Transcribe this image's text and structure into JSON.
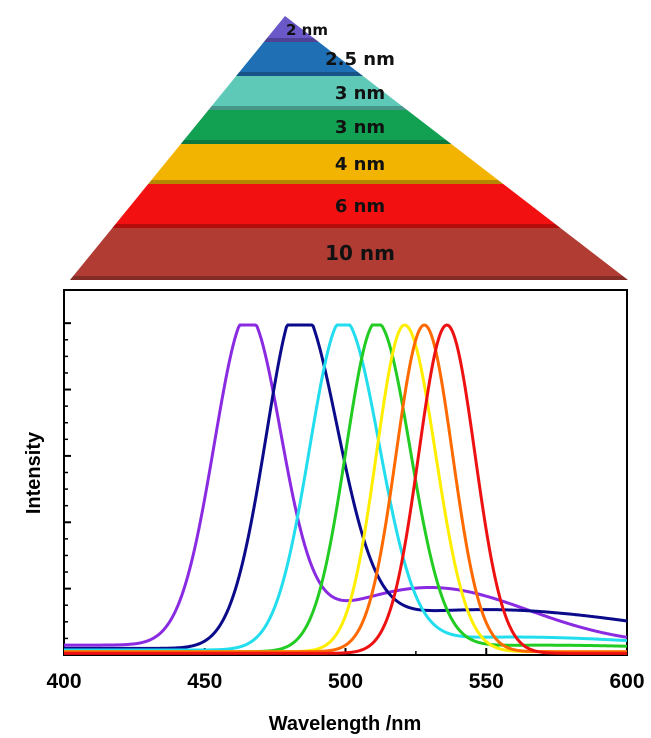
{
  "pyramid": {
    "layers": [
      {
        "label": "2 nm",
        "color": "#6a58c8"
      },
      {
        "label": "2.5 nm",
        "color": "#1f6fb5"
      },
      {
        "label": "3 nm",
        "color": "#5fc9b8"
      },
      {
        "label": "3 nm",
        "color": "#12a052"
      },
      {
        "label": "4 nm",
        "color": "#f2b400"
      },
      {
        "label": "6 nm",
        "color": "#f21010"
      },
      {
        "label": "10 nm",
        "color": "#b03c33"
      }
    ]
  },
  "chart_data": {
    "type": "line",
    "xlabel": "Wavelength /nm",
    "ylabel": "Intensity",
    "xlim": [
      400,
      600
    ],
    "ylim": [
      0,
      1.0
    ],
    "xticks": [
      "400",
      "450",
      "500",
      "550",
      "600"
    ],
    "series": [
      {
        "color": "#8a2be2",
        "peak": 465,
        "wl": 12,
        "wr": 12,
        "base": 0.03,
        "tail": 0.18,
        "tail_center": 530,
        "tail_width": 35
      },
      {
        "color": "#0a0a8a",
        "peak": 483,
        "wl": 12,
        "wr": 14,
        "base": 0.02,
        "tail": 0.12,
        "tail_center": 550,
        "tail_width": 60
      },
      {
        "color": "#22ddee",
        "peak": 499,
        "wl": 12,
        "wr": 13,
        "base": 0.015,
        "tail": 0.04,
        "tail_center": 560,
        "tail_width": 50
      },
      {
        "color": "#22cc22",
        "peak": 511,
        "wl": 11,
        "wr": 12,
        "base": 0.01,
        "tail": 0.02,
        "tail_center": 570,
        "tail_width": 50
      },
      {
        "color": "#ffee00",
        "peak": 521,
        "wl": 10,
        "wr": 11,
        "base": 0.01,
        "tail": 0.0,
        "tail_center": 570,
        "tail_width": 50
      },
      {
        "color": "#ff6a00",
        "peak": 528,
        "wl": 10,
        "wr": 10,
        "base": 0.01,
        "tail": 0.0,
        "tail_center": 570,
        "tail_width": 50
      },
      {
        "color": "#ee1111",
        "peak": 536,
        "wl": 10,
        "wr": 10,
        "base": 0.005,
        "tail": 0.0,
        "tail_center": 570,
        "tail_width": 50
      }
    ]
  }
}
